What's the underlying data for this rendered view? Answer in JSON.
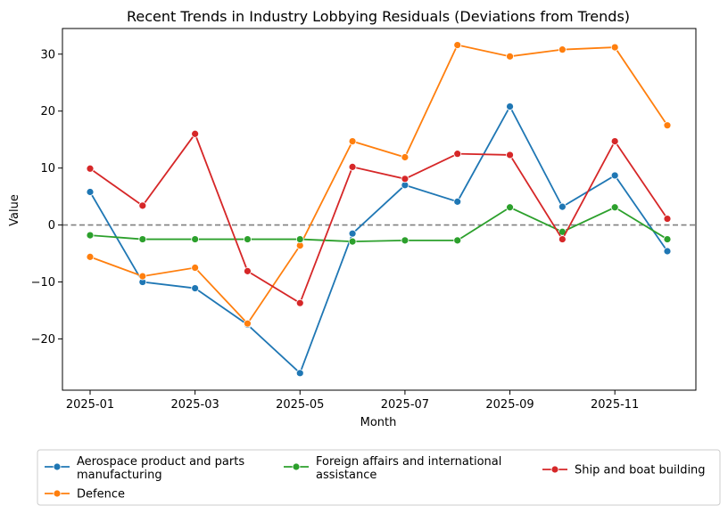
{
  "chart_data": {
    "type": "line",
    "title": "Recent Trends in Industry Lobbying Residuals (Deviations from Trends)",
    "xlabel": "Month",
    "ylabel": "Value",
    "x": [
      "2025-01",
      "2025-02",
      "2025-03",
      "2025-04",
      "2025-05",
      "2025-06",
      "2025-07",
      "2025-08",
      "2025-09",
      "2025-10",
      "2025-11",
      "2025-12"
    ],
    "x_tick_labels": [
      "2025-01",
      "2025-03",
      "2025-05",
      "2025-07",
      "2025-09",
      "2025-11"
    ],
    "y_ticks": [
      -20,
      -10,
      0,
      10,
      20,
      30
    ],
    "ylim": [
      -29,
      34.5
    ],
    "reference_line": 0,
    "grid": false,
    "legend_placement": "below",
    "series": [
      {
        "name": "Aerospace product and parts manufacturing",
        "color": "#1f77b4",
        "values": [
          5.8,
          -10.0,
          -11.1,
          -17.5,
          -26.0,
          -1.5,
          7.0,
          4.1,
          20.8,
          3.2,
          8.7,
          -4.6
        ]
      },
      {
        "name": "Defence",
        "color": "#ff7f0e",
        "values": [
          -5.6,
          -9.0,
          -7.5,
          -17.3,
          -3.6,
          14.7,
          11.9,
          31.6,
          29.6,
          30.8,
          31.2,
          17.5
        ]
      },
      {
        "name": "Foreign affairs and international assistance",
        "color": "#2ca02c",
        "values": [
          -1.8,
          -2.5,
          -2.5,
          -2.5,
          -2.5,
          -2.9,
          -2.7,
          -2.7,
          3.1,
          -1.2,
          3.1,
          -2.5
        ]
      },
      {
        "name": "Ship and boat building",
        "color": "#d62728",
        "values": [
          9.9,
          3.4,
          16.0,
          -8.1,
          -13.7,
          10.2,
          8.1,
          12.5,
          12.3,
          -2.5,
          14.7,
          1.1
        ]
      }
    ]
  }
}
